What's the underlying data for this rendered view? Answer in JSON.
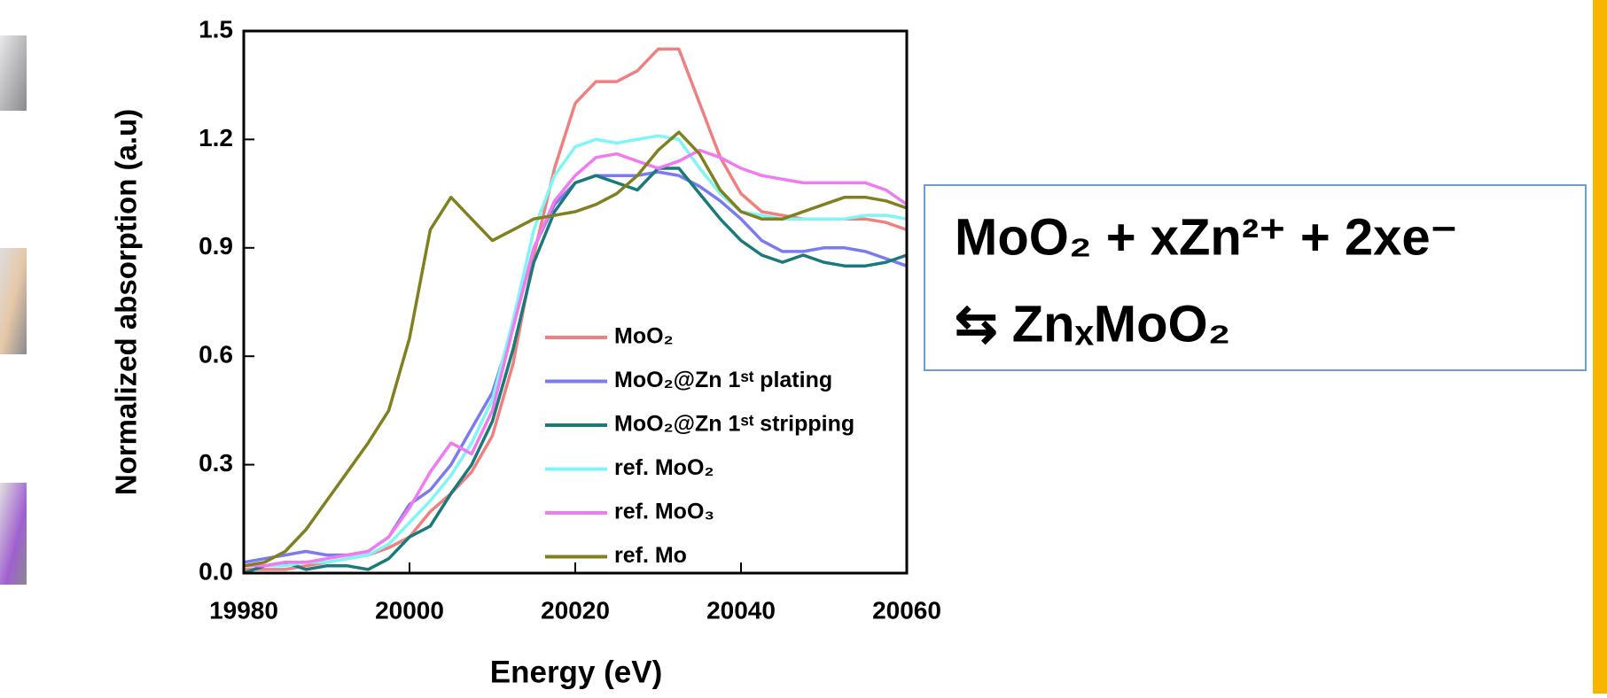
{
  "chart_data": {
    "type": "line",
    "ylabel": "Normalized absorption (a.u)",
    "xlabel": "Energy (eV)",
    "xlim": [
      19980,
      20060
    ],
    "ylim": [
      0,
      1.5
    ],
    "xticks": [
      19980,
      20000,
      20020,
      20040,
      20060
    ],
    "yticks": [
      {
        "value": 0,
        "label": "0.0"
      },
      0.3,
      0.6,
      0.9,
      1.2,
      1.5
    ],
    "x": [
      19980,
      19982.5,
      19985,
      19987.5,
      19990,
      19992.5,
      19995,
      19997.5,
      20000,
      20002.5,
      20005,
      20007.5,
      20010,
      20012.5,
      20015,
      20017.5,
      20020,
      20022.5,
      20025,
      20027.5,
      20030,
      20032.5,
      20035,
      20037.5,
      20040,
      20042.5,
      20045,
      20047.5,
      20050,
      20052.5,
      20055,
      20057.5,
      20060
    ],
    "series": [
      {
        "name": "MoO₂",
        "color": "#f08080",
        "values": [
          0.01,
          0.01,
          0.01,
          0.02,
          0.03,
          0.04,
          0.05,
          0.07,
          0.1,
          0.17,
          0.22,
          0.28,
          0.38,
          0.58,
          0.88,
          1.12,
          1.3,
          1.36,
          1.36,
          1.39,
          1.45,
          1.45,
          1.3,
          1.15,
          1.05,
          1.0,
          0.99,
          0.98,
          0.98,
          0.98,
          0.98,
          0.97,
          0.95
        ]
      },
      {
        "name": "MoO₂@Zn 1ˢᵗ plating",
        "color": "#7b7bef",
        "values": [
          0.03,
          0.04,
          0.05,
          0.06,
          0.05,
          0.05,
          0.06,
          0.1,
          0.19,
          0.23,
          0.3,
          0.4,
          0.5,
          0.68,
          0.9,
          1.02,
          1.08,
          1.1,
          1.1,
          1.1,
          1.11,
          1.1,
          1.07,
          1.03,
          0.98,
          0.92,
          0.89,
          0.89,
          0.9,
          0.9,
          0.89,
          0.87,
          0.85
        ]
      },
      {
        "name": "MoO₂@Zn 1ˢᵗ stripping",
        "color": "#1a7a7a",
        "values": [
          0.0,
          0.02,
          0.03,
          0.01,
          0.02,
          0.02,
          0.01,
          0.04,
          0.1,
          0.13,
          0.22,
          0.3,
          0.42,
          0.62,
          0.86,
          1.0,
          1.08,
          1.1,
          1.08,
          1.06,
          1.12,
          1.12,
          1.05,
          0.98,
          0.92,
          0.88,
          0.86,
          0.88,
          0.86,
          0.85,
          0.85,
          0.86,
          0.88
        ]
      },
      {
        "name": "ref. MoO₂",
        "color": "#80f5f5",
        "values": [
          0.02,
          0.02,
          0.02,
          0.03,
          0.03,
          0.04,
          0.05,
          0.08,
          0.14,
          0.2,
          0.27,
          0.36,
          0.48,
          0.7,
          0.95,
          1.1,
          1.18,
          1.2,
          1.19,
          1.2,
          1.21,
          1.2,
          1.12,
          1.05,
          1.0,
          0.99,
          0.98,
          0.98,
          0.98,
          0.98,
          0.99,
          0.99,
          0.98
        ]
      },
      {
        "name": "ref. MoO₃",
        "color": "#f07af0",
        "values": [
          0.02,
          0.02,
          0.03,
          0.03,
          0.04,
          0.05,
          0.06,
          0.1,
          0.18,
          0.28,
          0.36,
          0.33,
          0.45,
          0.68,
          0.9,
          1.03,
          1.1,
          1.15,
          1.16,
          1.14,
          1.12,
          1.14,
          1.17,
          1.15,
          1.12,
          1.1,
          1.09,
          1.08,
          1.08,
          1.08,
          1.08,
          1.06,
          1.02
        ]
      },
      {
        "name": "ref. Mo",
        "color": "#808020",
        "values": [
          0.02,
          0.03,
          0.06,
          0.12,
          0.2,
          0.28,
          0.36,
          0.45,
          0.65,
          0.95,
          1.04,
          0.98,
          0.92,
          0.95,
          0.98,
          0.99,
          1.0,
          1.02,
          1.05,
          1.1,
          1.17,
          1.22,
          1.16,
          1.06,
          1.0,
          0.98,
          0.98,
          1.0,
          1.02,
          1.04,
          1.04,
          1.03,
          1.01
        ]
      }
    ],
    "annotations": [
      "MoO₂ + xZn²⁺ + 2xe⁻",
      "⇆ ZnₓMoO₂"
    ]
  }
}
